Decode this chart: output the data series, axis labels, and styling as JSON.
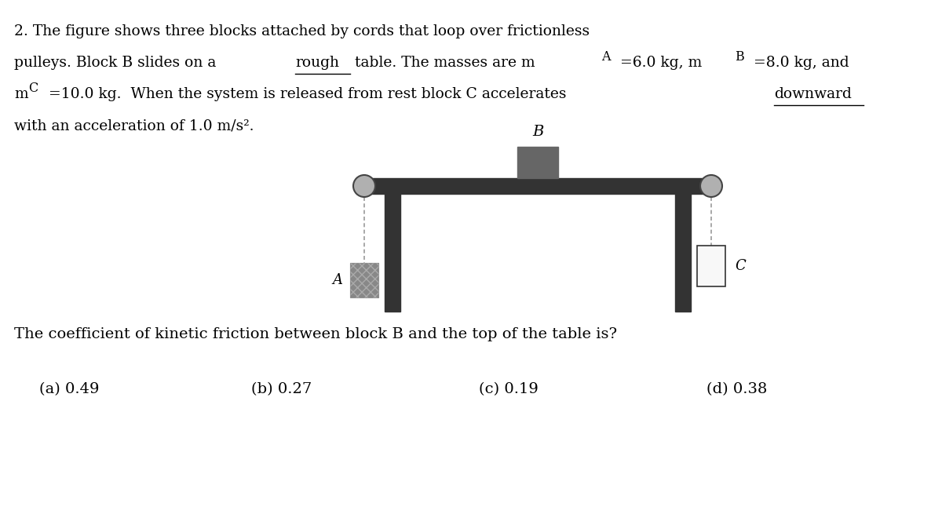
{
  "line1": "2. The figure shows three blocks attached by cords that loop over frictionless",
  "line2a": "pulleys. Block B slides on a ",
  "line2b": "rough",
  "line2c": " table. The masses are m",
  "line2d": "A",
  "line2e": " =6.0 kg, m",
  "line2f": "B",
  "line2g": " =8.0 kg, and",
  "line3a": "m",
  "line3b": "C",
  "line3c": " =10.0 kg.  When the system is released from rest block C accelerates ",
  "line3d": "downward",
  "line4": "with an acceleration of 1.0 m/s².",
  "question": "The coefficient of kinetic friction between block B and the top of the table is?",
  "choices": [
    "(a) 0.49",
    "(b) 0.27",
    "(c) 0.19",
    "(d) 0.38"
  ],
  "bg_color": "#ffffff",
  "text_color": "#000000",
  "table_color": "#333333",
  "block_a_color": "#888888",
  "block_b_color": "#666666",
  "rope_color": "#888888"
}
